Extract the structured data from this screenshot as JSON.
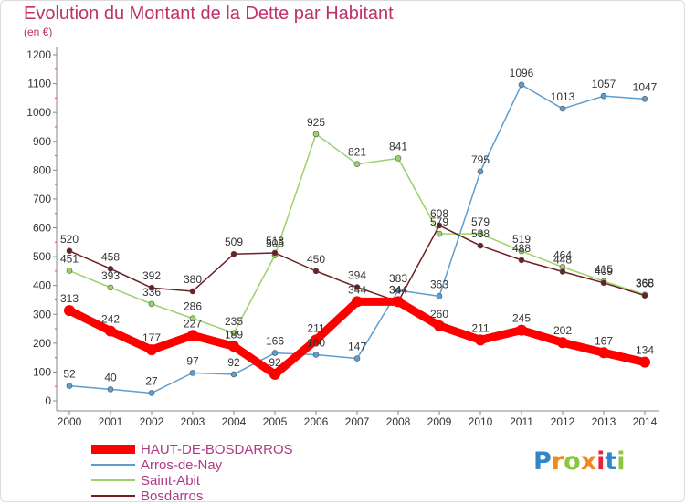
{
  "title": "Evolution du Montant de la Dette par Habitant",
  "subtitle": "(en €)",
  "logo_text": "Proxiti",
  "chart_data": {
    "type": "line",
    "title": "Evolution du Montant de la Dette par Habitant",
    "ylabel": "(en €)",
    "xlabel": "",
    "x": [
      2000,
      2001,
      2002,
      2003,
      2004,
      2005,
      2006,
      2007,
      2008,
      2009,
      2010,
      2011,
      2012,
      2013,
      2014
    ],
    "ylim": [
      0,
      1200
    ],
    "yticks": [
      0,
      100,
      200,
      300,
      400,
      500,
      600,
      700,
      800,
      900,
      1000,
      1100,
      1200
    ],
    "grid": false,
    "legend_position": "bottom-left",
    "series": [
      {
        "name": "HAUT-DE-BOSDARROS",
        "color": "#ff0000",
        "values": [
          313,
          242,
          177,
          227,
          189,
          92,
          211,
          344,
          344,
          260,
          211,
          245,
          202,
          167,
          134
        ]
      },
      {
        "name": "Arros-de-Nay",
        "color": "#5d9ed0",
        "values": [
          52,
          40,
          27,
          97,
          92,
          166,
          160,
          147,
          383,
          363,
          795,
          1096,
          1013,
          1057,
          1047
        ]
      },
      {
        "name": "Saint-Abit",
        "color": "#9bd26a",
        "values": [
          451,
          393,
          336,
          286,
          235,
          505,
          925,
          821,
          841,
          579,
          579,
          519,
          464,
          415,
          368
        ]
      },
      {
        "name": "Bosdarros",
        "color": "#6e1f24",
        "values": [
          520,
          458,
          392,
          380,
          509,
          513,
          450,
          394,
          344,
          608,
          538,
          488,
          448,
          409,
          365
        ]
      }
    ]
  }
}
